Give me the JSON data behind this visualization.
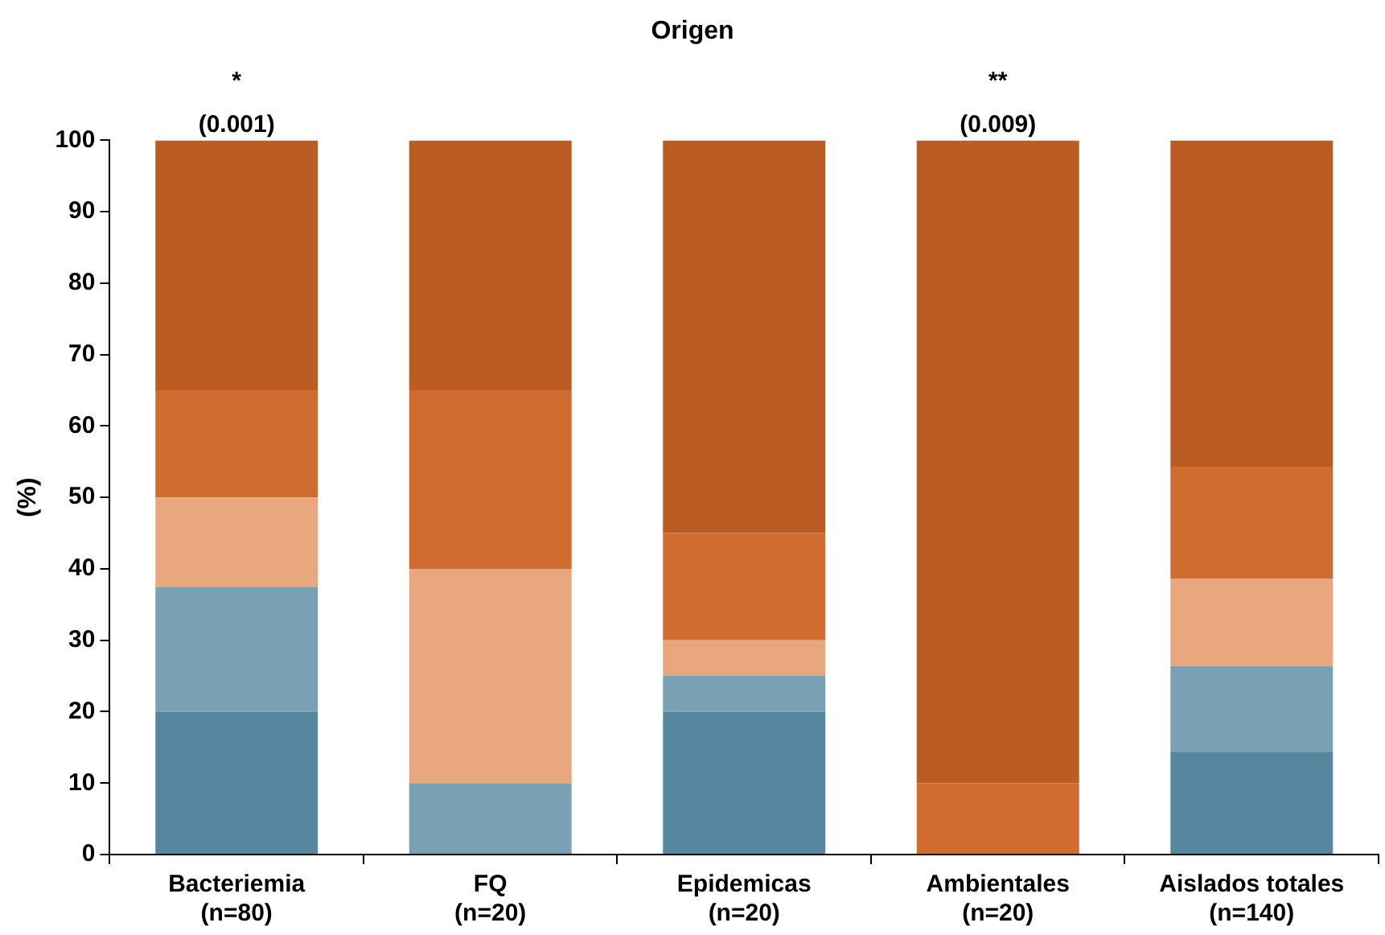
{
  "chart_data": {
    "type": "bar",
    "title": "Origen",
    "ylabel": "(%)",
    "stacked": true,
    "grid": false,
    "legend": false,
    "categories": [
      "Bacteriemia\n(n=80)",
      "FQ\n(n=20)",
      "Epidemicas\n(n=20)",
      "Ambientales\n(n=20)",
      "Aislados totales\n(n=140)"
    ],
    "series": [
      {
        "color": "#55879f",
        "values": [
          20,
          0,
          20,
          0,
          14.3
        ]
      },
      {
        "color": "#7aa0b4",
        "values": [
          17.5,
          10,
          5,
          0,
          12.1
        ]
      },
      {
        "color": "#e8a77c",
        "values": [
          12.5,
          30,
          5,
          0,
          12.2
        ]
      },
      {
        "color": "#d06c30",
        "values": [
          15,
          25,
          15,
          10,
          15.7
        ]
      },
      {
        "color": "#bb5c24",
        "values": [
          35,
          35,
          55,
          90,
          45.7
        ]
      }
    ],
    "ylim": [
      0,
      100
    ],
    "yticks": [
      0,
      10,
      20,
      30,
      40,
      50,
      60,
      70,
      80,
      90,
      100
    ],
    "annotations": [
      {
        "text": "*\n(0.001)",
        "x": "Bacteriemia\n(n=80)",
        "y": 100
      },
      {
        "text": "**\n(0.009)",
        "x": "Ambientales\n(n=20)",
        "y": 100
      }
    ]
  }
}
